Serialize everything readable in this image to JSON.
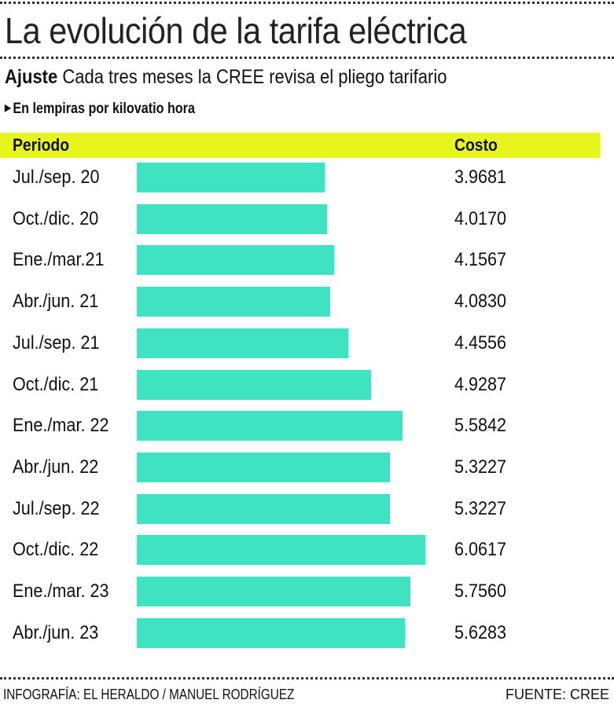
{
  "title": "La evolución de la tarifa eléctrica",
  "subtitle": {
    "lead": "Ajuste",
    "text": "Cada tres meses la CREE revisa el pliego tarifario"
  },
  "unit_note": "En lempiras por kilovatio hora",
  "colors": {
    "bar": "#3fe3c2",
    "header": "#e8f51c"
  },
  "chart_data": {
    "type": "bar",
    "orientation": "horizontal",
    "column_headers": [
      "Periodo",
      "Costo"
    ],
    "categories": [
      "Jul./sep. 20",
      "Oct./dic. 20",
      "Ene./mar.21",
      "Abr./jun. 21",
      "Jul./sep. 21",
      "Oct./dic. 21",
      "Ene./mar. 22",
      "Abr./jun. 22",
      "Jul./sep. 22",
      "Oct./dic. 22",
      "Ene./mar. 23",
      "Abr./jun. 23"
    ],
    "values": [
      "3.9681",
      "4.0170",
      "4.1567",
      "4.0830",
      "4.4556",
      "4.9287",
      "5.5842",
      "5.3227",
      "5.3227",
      "6.0617",
      "5.7560",
      "5.6283"
    ]
  },
  "footer": {
    "credit": "INFOGRAFÍA: EL HERALDO / MANUEL RODRÍGUEZ",
    "source": "FUENTE: CREE"
  }
}
